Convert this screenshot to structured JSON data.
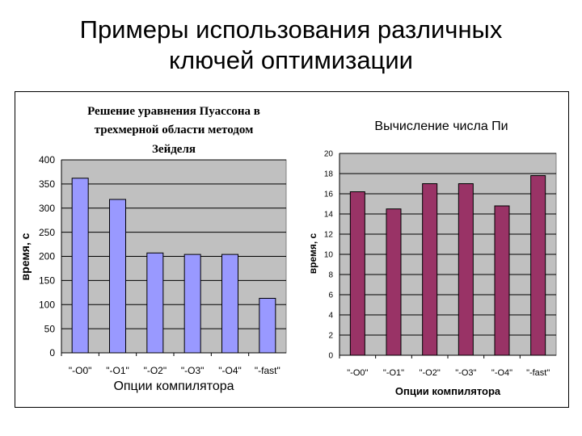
{
  "slide": {
    "title_line1": "Примеры использования различных",
    "title_line2": "ключей оптимизации"
  },
  "chart_data": [
    {
      "type": "bar",
      "title": "Решение уравнения Пуассона в трехмерной области методом Зейделя",
      "title_lines": [
        "Решение уравнения Пуассона в",
        "трехмерной области методом",
        "Зейделя"
      ],
      "xlabel": "Опции компилятора",
      "ylabel": "время, с",
      "categories": [
        "\"-O0\"",
        "\"-O1\"",
        "\"-O2\"",
        "\"-O3\"",
        "\"-O4\"",
        "\"-fast\""
      ],
      "values": [
        362,
        318,
        207,
        204,
        204,
        113
      ],
      "ylim": [
        0,
        400
      ],
      "yticks": [
        0,
        50,
        100,
        150,
        200,
        250,
        300,
        350,
        400
      ],
      "grid": true,
      "legend": "none",
      "bar_color": "#9999ff",
      "plot_bg": "#c0c0c0"
    },
    {
      "type": "bar",
      "title": "Вычисление числа Пи",
      "title_lines": [
        "Вычисление числа Пи"
      ],
      "xlabel": "Опции компилятора",
      "ylabel": "время, с",
      "categories": [
        "\"-O0\"",
        "\"-O1\"",
        "\"-O2\"",
        "\"-O3\"",
        "\"-O4\"",
        "\"-fast\""
      ],
      "values": [
        16.2,
        14.5,
        17.0,
        17.0,
        14.8,
        17.8
      ],
      "ylim": [
        0,
        20
      ],
      "yticks": [
        0,
        2,
        4,
        6,
        8,
        10,
        12,
        14,
        16,
        18,
        20
      ],
      "grid": true,
      "legend": "none",
      "bar_color": "#993366",
      "plot_bg": "#c0c0c0"
    }
  ]
}
